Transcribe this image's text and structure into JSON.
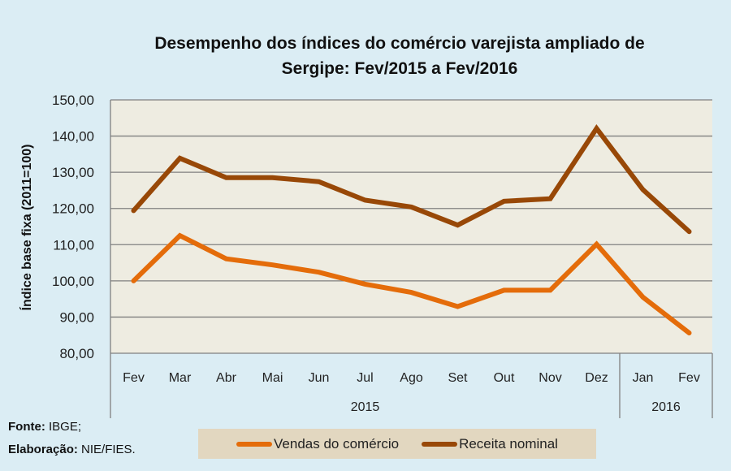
{
  "chart_data": {
    "type": "line",
    "title": "Desempenho dos índices do comércio varejista ampliado de Sergipe: Fev/2015 a Fev/2016",
    "title_lines": [
      "Desempenho dos índices do comércio varejista ampliado  de",
      "Sergipe: Fev/2015 a Fev/2016"
    ],
    "xlabel": "",
    "ylabel": "Índice base fixa (2011=100)",
    "ylim": [
      80,
      150
    ],
    "yticks": [
      "80,00",
      "90,00",
      "100,00",
      "110,00",
      "120,00",
      "130,00",
      "140,00",
      "150,00"
    ],
    "ytick_values": [
      80,
      90,
      100,
      110,
      120,
      130,
      140,
      150
    ],
    "grid": true,
    "categories": [
      "Fev",
      "Mar",
      "Abr",
      "Mai",
      "Jun",
      "Jul",
      "Ago",
      "Set",
      "Out",
      "Nov",
      "Dez",
      "Jan",
      "Fev"
    ],
    "year_groups": [
      {
        "label": "2015",
        "count": 11
      },
      {
        "label": "2016",
        "count": 2
      }
    ],
    "series": [
      {
        "name": "Vendas do comércio",
        "color": "#e46c0a",
        "values": [
          100.0,
          112.5,
          106.1,
          104.4,
          102.4,
          99.1,
          96.8,
          92.9,
          97.4,
          97.4,
          110.1,
          95.5,
          85.6
        ]
      },
      {
        "name": "Receita nominal",
        "color": "#984807",
        "values": [
          119.4,
          133.9,
          128.5,
          128.5,
          127.4,
          122.3,
          120.4,
          115.4,
          122.0,
          122.7,
          142.1,
          125.2,
          113.6
        ]
      }
    ],
    "legend_position": "bottom"
  },
  "footer": {
    "source_label": "Fonte:",
    "source_value": " IBGE;",
    "prep_label": "Elaboração:",
    "prep_value": " NIE/FIES."
  },
  "colors": {
    "plot_background": "#eeece1",
    "page_background": "#dbedf4",
    "gridline": "#808080"
  }
}
